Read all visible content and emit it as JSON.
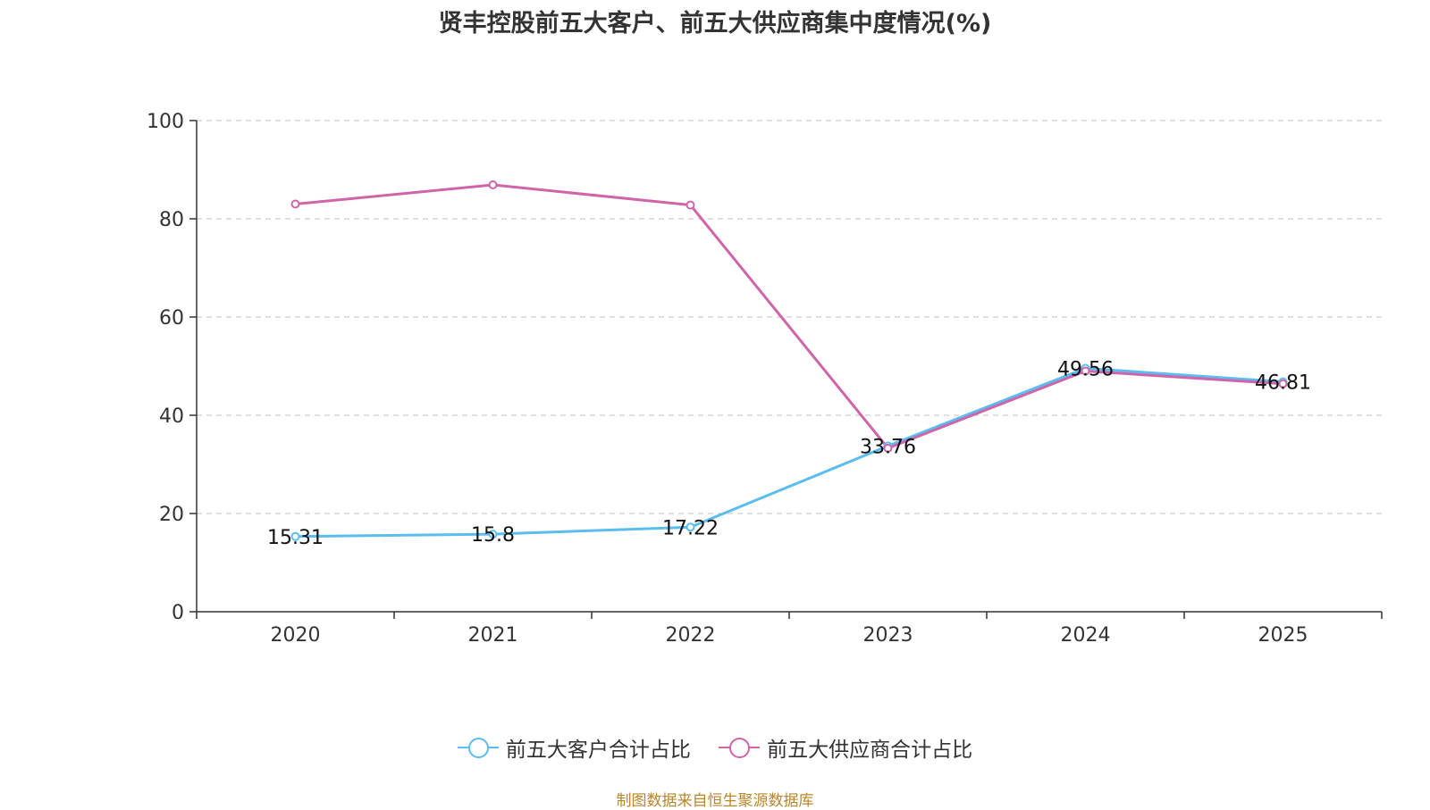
{
  "title": "贤丰控股前五大客户、前五大供应商集中度情况(%)",
  "source_note": "制图数据来自恒生聚源数据库",
  "chart_data": {
    "type": "line",
    "title": "贤丰控股前五大客户、前五大供应商集中度情况(%)",
    "categories": [
      "2020",
      "2021",
      "2022",
      "2023",
      "2024",
      "2025"
    ],
    "ylim": [
      0,
      100
    ],
    "yticks": [
      "0",
      "20",
      "40",
      "60",
      "80",
      "100"
    ],
    "grid": true,
    "legend_position": "bottom",
    "series": [
      {
        "name": "前五大客户合计占比",
        "color": "#5bbcf0",
        "values": [
          15.31,
          15.8,
          17.22,
          33.76,
          49.56,
          46.81
        ],
        "labels": [
          "15.31",
          "15.8",
          "17.22",
          "33.76",
          "49.56",
          "46.81"
        ]
      },
      {
        "name": "前五大供应商合计占比",
        "color": "#d064a8",
        "values": [
          83.0,
          86.9,
          82.8,
          33.3,
          49.0,
          46.4
        ]
      }
    ]
  }
}
